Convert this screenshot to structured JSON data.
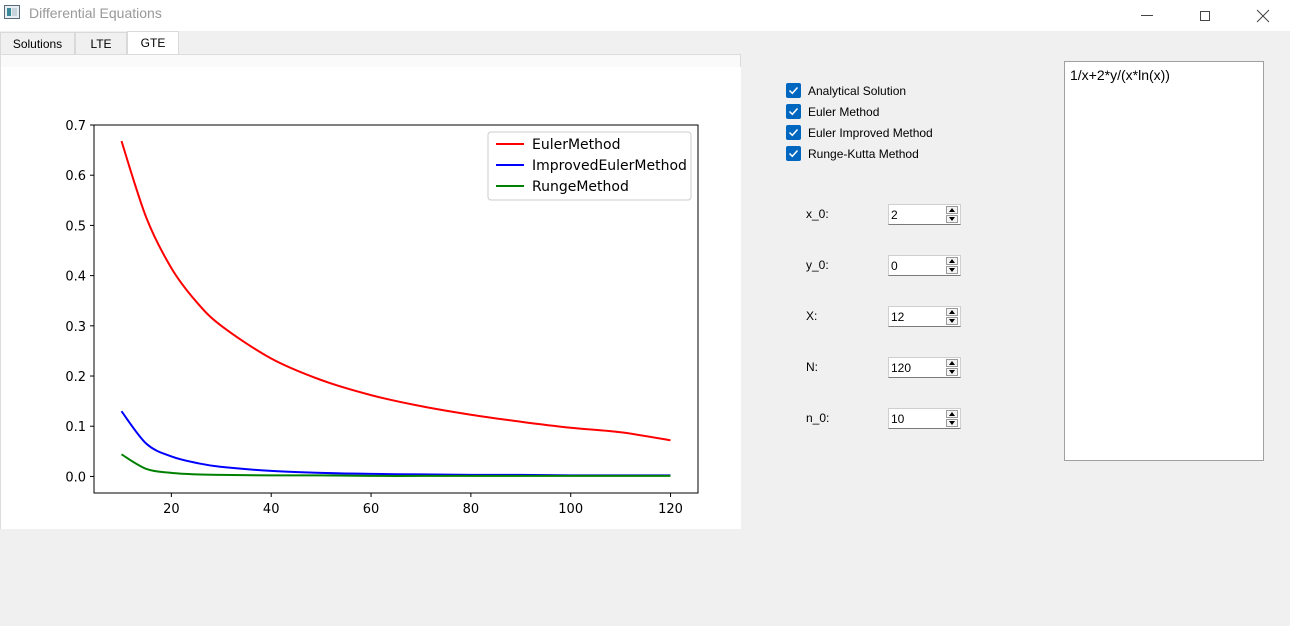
{
  "window": {
    "title": "Differential Equations",
    "icon": "app-window-icon",
    "controls": [
      "minimize-icon",
      "maximize-icon",
      "close-icon"
    ]
  },
  "tabs": [
    {
      "label": "Solutions",
      "active": false
    },
    {
      "label": "LTE",
      "active": false
    },
    {
      "label": "GTE",
      "active": true
    }
  ],
  "chart_data": {
    "type": "line",
    "title": "",
    "xlabel": "",
    "ylabel": "",
    "xlim": [
      4.5,
      125.5
    ],
    "ylim": [
      -0.033,
      0.7
    ],
    "xticks": [
      20,
      40,
      60,
      80,
      100,
      120
    ],
    "yticks": [
      0.0,
      0.1,
      0.2,
      0.3,
      0.4,
      0.5,
      0.6,
      0.7
    ],
    "xtick_labels": [
      "20",
      "40",
      "60",
      "80",
      "100",
      "120"
    ],
    "ytick_labels": [
      "0.0",
      "0.1",
      "0.2",
      "0.3",
      "0.4",
      "0.5",
      "0.6",
      "0.7"
    ],
    "grid": false,
    "legend_position": "top-right",
    "x": [
      10,
      15,
      20,
      25,
      30,
      40,
      50,
      60,
      70,
      80,
      90,
      100,
      110,
      120
    ],
    "series": [
      {
        "name": "EulerMethod",
        "color": "#ff0000",
        "values": [
          0.668,
          0.515,
          0.415,
          0.348,
          0.3,
          0.235,
          0.192,
          0.162,
          0.14,
          0.123,
          0.109,
          0.097,
          0.088,
          0.072
        ]
      },
      {
        "name": "ImprovedEulerMethod",
        "color": "#0000ff",
        "values": [
          0.13,
          0.065,
          0.04,
          0.027,
          0.019,
          0.011,
          0.007,
          0.005,
          0.004,
          0.003,
          0.003,
          0.002,
          0.002,
          0.002
        ]
      },
      {
        "name": "RungeMethod",
        "color": "#008000",
        "values": [
          0.044,
          0.015,
          0.007,
          0.004,
          0.003,
          0.002,
          0.002,
          0.001,
          0.001,
          0.001,
          0.001,
          0.001,
          0.001,
          0.001
        ]
      }
    ]
  },
  "checkboxes": [
    {
      "label": "Analytical Solution",
      "checked": true
    },
    {
      "label": "Euler Method",
      "checked": true
    },
    {
      "label": "Euler Improved Method",
      "checked": true
    },
    {
      "label": "Runge-Kutta Method",
      "checked": true
    }
  ],
  "params": [
    {
      "label": "x_0:",
      "value": "2"
    },
    {
      "label": "y_0:",
      "value": "0"
    },
    {
      "label": "X:",
      "value": "12"
    },
    {
      "label": "N:",
      "value": "120"
    },
    {
      "label": "n_0:",
      "value": "10"
    }
  ],
  "equation": "1/x+2*y/(x*ln(x))",
  "colors": {
    "accent": "#0067c0",
    "background": "#f0f0f0"
  }
}
